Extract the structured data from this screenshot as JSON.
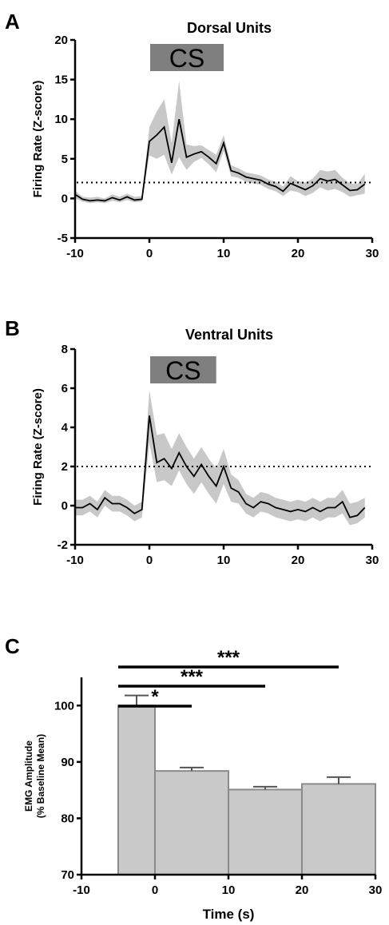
{
  "figure": {
    "panels": [
      {
        "letter": "A",
        "title": "Dorsal Units",
        "ylabel": "Firing Rate (Z-score)",
        "cs_label": "CS"
      },
      {
        "letter": "B",
        "title": "Ventral  Units",
        "ylabel": "Firing Rate (Z-score)",
        "cs_label": "CS"
      },
      {
        "letter": "C",
        "ylabel_line1": "EMG Amplitude",
        "ylabel_line2": "(% Baseline Mean)",
        "xlabel": "Time (s)"
      }
    ]
  },
  "chart_data": [
    {
      "type": "line",
      "title": "Dorsal Units",
      "ylabel": "Firing Rate (Z-score)",
      "xlim": [
        -10,
        30
      ],
      "ylim": [
        -5,
        20
      ],
      "xticks": [
        "-10",
        "0",
        "10",
        "20",
        "30"
      ],
      "yticks": [
        "-5",
        "0",
        "5",
        "10",
        "15",
        "20"
      ],
      "threshold": 2,
      "cs_window": [
        0,
        10
      ],
      "cs_label": "CS",
      "x": [
        -10,
        -9,
        -8,
        -7,
        -6,
        -5,
        -4,
        -3,
        -2,
        -1,
        0,
        1,
        2,
        3,
        4,
        5,
        6,
        7,
        8,
        9,
        10,
        11,
        12,
        13,
        14,
        15,
        16,
        17,
        18,
        19,
        20,
        21,
        22,
        23,
        24,
        25,
        26,
        27,
        28,
        29
      ],
      "mean": [
        0.5,
        -0.1,
        -0.3,
        -0.2,
        -0.3,
        0.1,
        -0.2,
        0.2,
        -0.2,
        -0.1,
        7.2,
        8.0,
        9.0,
        4.5,
        10.0,
        5.2,
        5.6,
        5.9,
        5.2,
        4.4,
        7.0,
        3.5,
        3.2,
        2.7,
        2.5,
        2.3,
        1.8,
        1.5,
        0.9,
        1.9,
        1.5,
        1.1,
        1.6,
        2.5,
        2.2,
        2.4,
        1.7,
        1.0,
        1.1,
        1.8
      ],
      "upper": [
        1.0,
        0.2,
        0.1,
        0.2,
        0.0,
        0.5,
        0.2,
        0.6,
        0.2,
        0.3,
        9.0,
        11.0,
        12.5,
        7.0,
        14.8,
        6.8,
        6.6,
        6.7,
        6.1,
        5.5,
        8.0,
        4.2,
        3.8,
        3.3,
        3.1,
        2.9,
        2.4,
        2.1,
        1.5,
        2.8,
        2.2,
        2.0,
        2.5,
        3.6,
        3.4,
        3.6,
        2.6,
        1.9,
        1.8,
        3.1
      ],
      "lower": [
        0.0,
        -0.4,
        -0.6,
        -0.5,
        -0.6,
        -0.3,
        -0.5,
        -0.2,
        -0.5,
        -0.4,
        5.4,
        5.0,
        5.5,
        3.0,
        5.2,
        3.6,
        4.6,
        5.1,
        4.3,
        3.3,
        6.0,
        2.8,
        2.6,
        2.1,
        1.9,
        1.7,
        1.2,
        0.9,
        0.3,
        1.0,
        0.8,
        0.3,
        0.7,
        1.4,
        1.0,
        1.2,
        0.8,
        0.2,
        0.4,
        0.6
      ]
    },
    {
      "type": "line",
      "title": "Ventral  Units",
      "ylabel": "Firing Rate (Z-score)",
      "xlim": [
        -10,
        30
      ],
      "ylim": [
        -2,
        8
      ],
      "xticks": [
        "-10",
        "0",
        "10",
        "20",
        "30"
      ],
      "yticks": [
        "-2",
        "0",
        "2",
        "4",
        "6",
        "8"
      ],
      "threshold": 2,
      "cs_window": [
        0,
        9
      ],
      "cs_label": "CS",
      "x": [
        -10,
        -9,
        -8,
        -7,
        -6,
        -5,
        -4,
        -3,
        -2,
        -1,
        0,
        1,
        2,
        3,
        4,
        5,
        6,
        7,
        8,
        9,
        10,
        11,
        12,
        13,
        14,
        15,
        16,
        17,
        18,
        19,
        20,
        21,
        22,
        23,
        24,
        25,
        26,
        27,
        28,
        29
      ],
      "mean": [
        -0.1,
        -0.1,
        0.1,
        -0.2,
        0.4,
        0.1,
        0.1,
        -0.1,
        -0.4,
        -0.2,
        4.6,
        2.2,
        2.4,
        1.9,
        2.7,
        2.0,
        1.5,
        2.1,
        1.5,
        1.0,
        2.0,
        0.9,
        0.7,
        0.1,
        -0.1,
        0.2,
        0.1,
        -0.1,
        -0.2,
        -0.3,
        -0.2,
        -0.3,
        -0.1,
        -0.3,
        -0.1,
        -0.1,
        0.2,
        -0.6,
        -0.5,
        -0.1
      ],
      "upper": [
        0.3,
        0.3,
        0.5,
        0.2,
        0.8,
        0.5,
        0.5,
        0.3,
        0.0,
        0.2,
        5.9,
        3.6,
        3.7,
        2.9,
        3.7,
        3.0,
        2.4,
        3.0,
        2.4,
        1.9,
        2.9,
        1.6,
        1.3,
        0.6,
        0.4,
        0.7,
        0.6,
        0.4,
        0.3,
        0.2,
        0.3,
        0.2,
        0.4,
        0.2,
        0.4,
        0.4,
        0.8,
        0.1,
        0.2,
        0.4
      ],
      "lower": [
        -0.5,
        -0.5,
        -0.3,
        -0.6,
        0.0,
        -0.3,
        -0.3,
        -0.5,
        -0.8,
        -0.6,
        3.2,
        1.2,
        1.3,
        1.0,
        1.8,
        1.1,
        0.6,
        1.2,
        0.6,
        0.1,
        1.1,
        0.2,
        0.1,
        -0.4,
        -0.6,
        -0.3,
        -0.4,
        -0.6,
        -0.7,
        -0.8,
        -0.7,
        -0.8,
        -0.6,
        -0.8,
        -0.6,
        -0.6,
        -0.4,
        -1.0,
        -0.9,
        -0.6
      ]
    },
    {
      "type": "bar",
      "ylabel": "EMG Amplitude (% Baseline Mean)",
      "xlabel": "Time (s)",
      "xlim": [
        -10,
        30
      ],
      "ylim": [
        70,
        105
      ],
      "xticks": [
        "-10",
        "0",
        "10",
        "20",
        "30"
      ],
      "yticks": [
        "70",
        "80",
        "90",
        "100"
      ],
      "bars": [
        {
          "x0": -5,
          "x1": 0,
          "value": 100.0,
          "error": 1.8
        },
        {
          "x0": 0,
          "x1": 10,
          "value": 88.4,
          "error": 0.6
        },
        {
          "x0": 10,
          "x1": 20,
          "value": 85.1,
          "error": 0.5
        },
        {
          "x0": 20,
          "x1": 30,
          "value": 86.1,
          "error": 1.2
        }
      ],
      "significance": [
        {
          "label": "*",
          "from_bar": 0,
          "to_bar": 1
        },
        {
          "label": "***",
          "from_bar": 0,
          "to_bar": 2
        },
        {
          "label": "***",
          "from_bar": 0,
          "to_bar": 3
        }
      ]
    }
  ]
}
